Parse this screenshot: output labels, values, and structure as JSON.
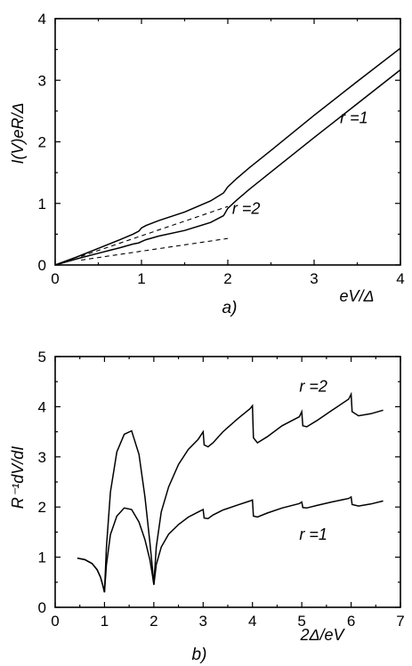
{
  "chart_data": [
    {
      "type": "line",
      "panel_label": "a)",
      "xlabel": "eV/Δ",
      "ylabel": "I(V)eR/Δ",
      "xlim": [
        0,
        4
      ],
      "ylim": [
        0,
        4
      ],
      "xticks": [
        "0",
        "1",
        "2",
        "3",
        "4"
      ],
      "yticks": [
        "0",
        "1",
        "2",
        "3",
        "4"
      ],
      "annotations": [
        {
          "text": "r =1",
          "x": 3.3,
          "y": 2.3
        },
        {
          "text": "r =2",
          "x": 2.05,
          "y": 0.83
        }
      ],
      "series": [
        {
          "style": "solid",
          "x": [
            0,
            0.25,
            0.5,
            0.75,
            0.9,
            0.97,
            1.0,
            1.05,
            1.2,
            1.5,
            1.8,
            1.95,
            2.0,
            2.1,
            2.25,
            2.5,
            3.0,
            3.5,
            4.0
          ],
          "y": [
            0,
            0.13,
            0.27,
            0.41,
            0.5,
            0.55,
            0.6,
            0.64,
            0.72,
            0.86,
            1.04,
            1.17,
            1.27,
            1.4,
            1.58,
            1.86,
            2.43,
            2.98,
            3.52
          ]
        },
        {
          "style": "solid",
          "x": [
            0,
            0.25,
            0.5,
            0.75,
            0.9,
            0.97,
            1.0,
            1.05,
            1.2,
            1.5,
            1.8,
            1.95,
            2.0,
            2.1,
            2.25,
            2.5,
            3.0,
            3.5,
            4.0
          ],
          "y": [
            0,
            0.1,
            0.19,
            0.28,
            0.34,
            0.36,
            0.38,
            0.41,
            0.47,
            0.56,
            0.69,
            0.8,
            0.92,
            1.05,
            1.23,
            1.51,
            2.07,
            2.62,
            3.17
          ]
        },
        {
          "style": "dashed",
          "x": [
            0.3,
            2.0
          ],
          "y": [
            0.14,
            0.95
          ]
        },
        {
          "style": "dashed",
          "x": [
            0.3,
            2.0
          ],
          "y": [
            0.08,
            0.43
          ]
        }
      ]
    },
    {
      "type": "line",
      "panel_label": "b)",
      "xlabel": "2Δ/eV",
      "ylabel": "R⁻¹dV/dI",
      "xlim": [
        0,
        7
      ],
      "ylim": [
        0,
        5
      ],
      "xticks": [
        "0",
        "1",
        "2",
        "3",
        "4",
        "5",
        "6",
        "7"
      ],
      "yticks": [
        "0",
        "1",
        "2",
        "3",
        "4",
        "5"
      ],
      "annotations": [
        {
          "text": "r =2",
          "x": 4.95,
          "y": 4.3
        },
        {
          "text": "r =1",
          "x": 4.95,
          "y": 1.35
        }
      ],
      "series": [
        {
          "style": "solid",
          "x": [
            0.45,
            0.6,
            0.75,
            0.85,
            0.92,
            0.97,
            1.0,
            1.04,
            1.12,
            1.25,
            1.4,
            1.55,
            1.7,
            1.82,
            1.92,
            1.97,
            2.0,
            2.05,
            2.15,
            2.3,
            2.5,
            2.7,
            2.9,
            3.0,
            3.02,
            3.1,
            3.2,
            3.4,
            3.7,
            3.95,
            4.0,
            4.02,
            4.1,
            4.3,
            4.6,
            4.95,
            5.0,
            5.02,
            5.1,
            5.3,
            5.6,
            5.95,
            6.0,
            6.02,
            6.15,
            6.4,
            6.65
          ],
          "y": [
            0.98,
            0.95,
            0.87,
            0.75,
            0.6,
            0.42,
            0.3,
            0.85,
            1.45,
            1.82,
            1.98,
            1.95,
            1.7,
            1.35,
            0.95,
            0.65,
            0.45,
            0.85,
            1.2,
            1.46,
            1.65,
            1.8,
            1.9,
            1.95,
            1.78,
            1.77,
            1.84,
            1.94,
            2.04,
            2.12,
            2.14,
            1.82,
            1.8,
            1.88,
            1.98,
            2.07,
            2.1,
            1.99,
            1.98,
            2.03,
            2.1,
            2.17,
            2.2,
            2.05,
            2.02,
            2.06,
            2.12
          ]
        },
        {
          "style": "solid",
          "x": [
            0.45,
            0.6,
            0.75,
            0.85,
            0.92,
            0.97,
            1.0,
            1.04,
            1.12,
            1.25,
            1.4,
            1.55,
            1.7,
            1.82,
            1.92,
            1.97,
            2.0,
            2.05,
            2.15,
            2.3,
            2.5,
            2.7,
            2.9,
            3.0,
            3.02,
            3.1,
            3.2,
            3.4,
            3.7,
            3.95,
            4.0,
            4.02,
            4.1,
            4.3,
            4.6,
            4.95,
            5.0,
            5.02,
            5.1,
            5.3,
            5.6,
            5.95,
            6.0,
            6.02,
            6.15,
            6.4,
            6.65
          ],
          "y": [
            0.98,
            0.95,
            0.87,
            0.75,
            0.6,
            0.42,
            0.3,
            1.2,
            2.3,
            3.1,
            3.45,
            3.52,
            3.05,
            2.2,
            1.3,
            0.8,
            0.45,
            1.2,
            1.9,
            2.4,
            2.85,
            3.15,
            3.35,
            3.5,
            3.24,
            3.2,
            3.28,
            3.5,
            3.76,
            3.96,
            4.02,
            3.38,
            3.28,
            3.4,
            3.62,
            3.8,
            3.9,
            3.62,
            3.6,
            3.72,
            3.92,
            4.15,
            4.25,
            3.9,
            3.82,
            3.86,
            3.93
          ]
        }
      ]
    }
  ]
}
